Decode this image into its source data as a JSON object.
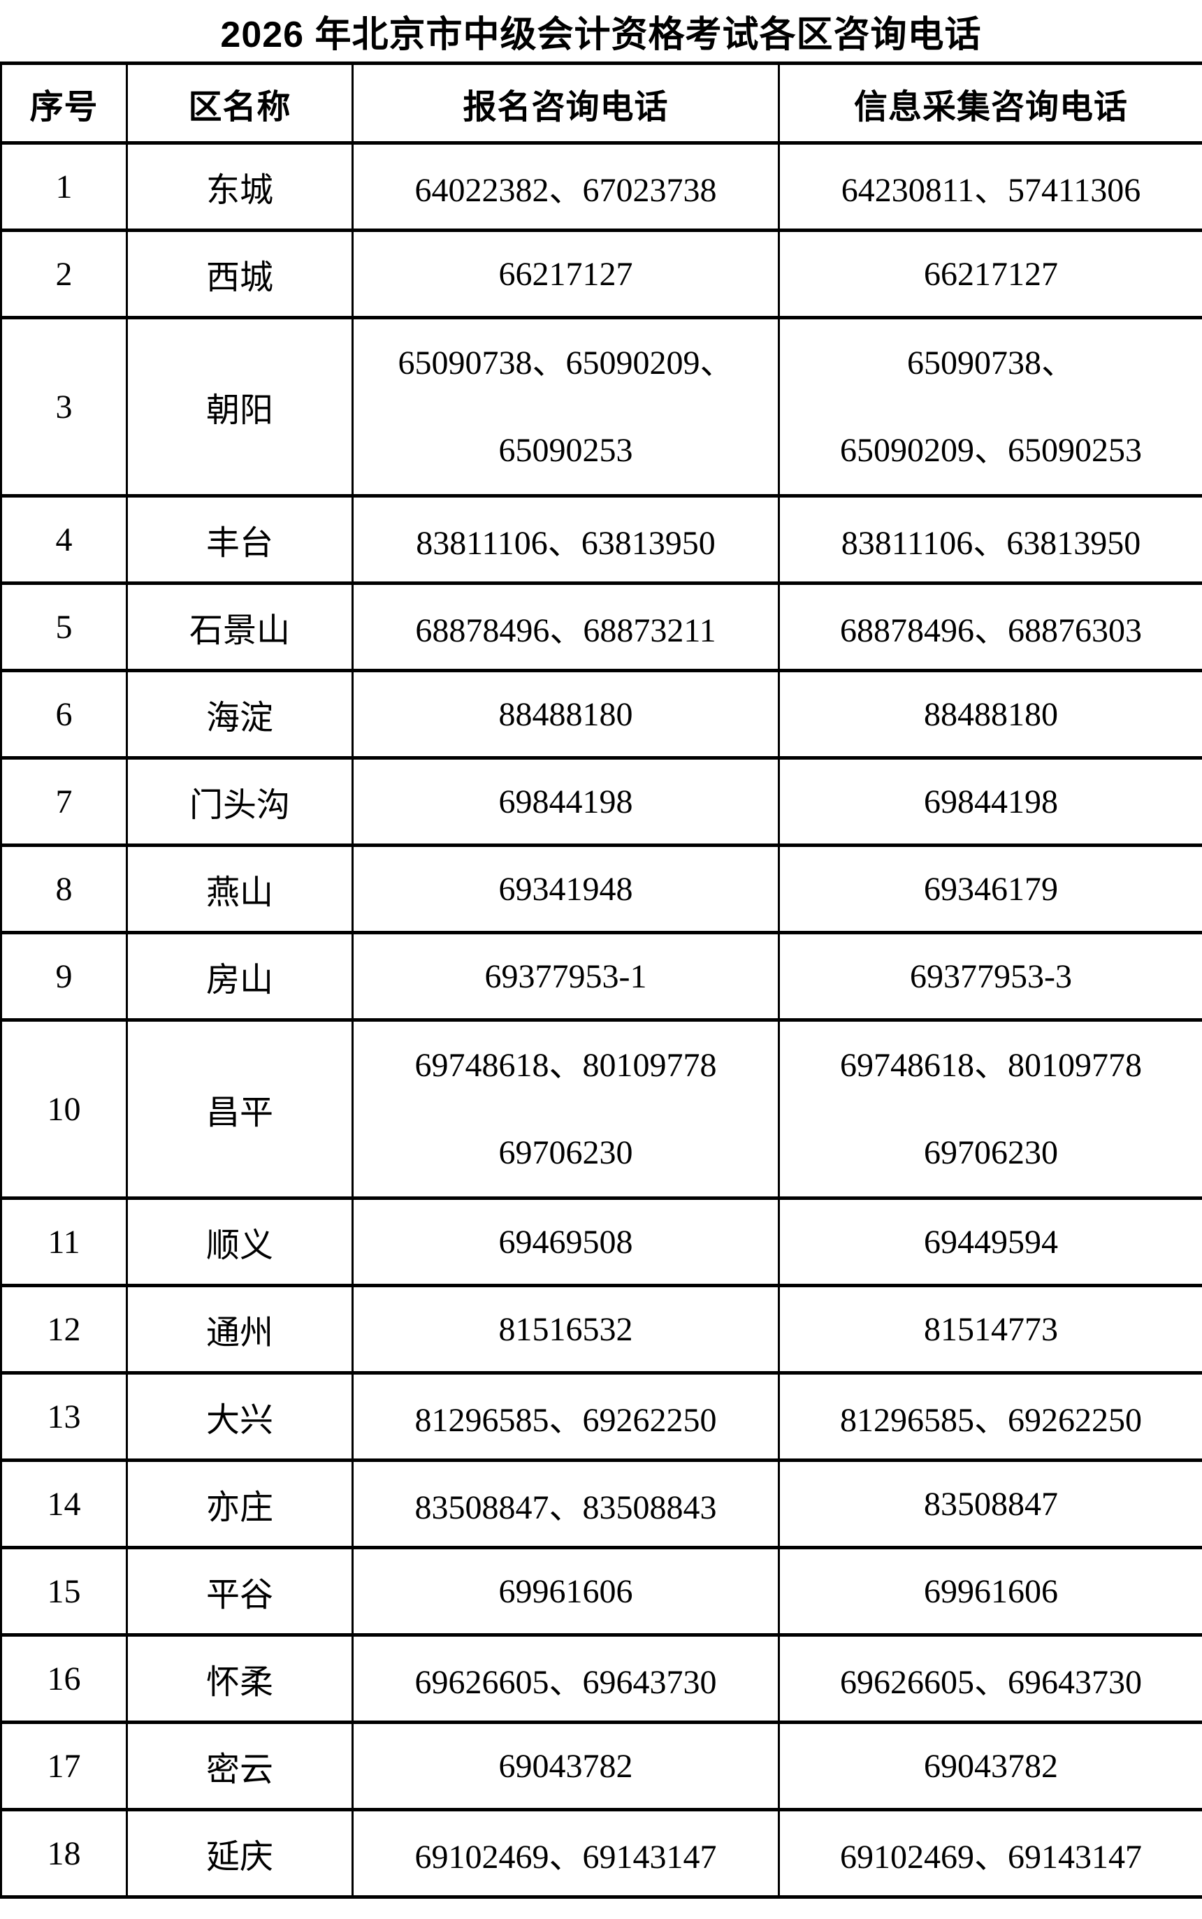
{
  "title": "2026 年北京市中级会计资格考试各区咨询电话",
  "table": {
    "headers": [
      "序号",
      "区名称",
      "报名咨询电话",
      "信息采集咨询电话"
    ],
    "rows": [
      {
        "no": "1",
        "district": "东城",
        "registration_phones": [
          "64022382、67023738"
        ],
        "collection_phones": [
          "64230811、57411306"
        ]
      },
      {
        "no": "2",
        "district": "西城",
        "registration_phones": [
          "66217127"
        ],
        "collection_phones": [
          "66217127"
        ]
      },
      {
        "no": "3",
        "district": "朝阳",
        "registration_phones": [
          "65090738、65090209、",
          "65090253"
        ],
        "collection_phones": [
          "65090738、",
          "65090209、65090253"
        ]
      },
      {
        "no": "4",
        "district": "丰台",
        "registration_phones": [
          "83811106、63813950"
        ],
        "collection_phones": [
          "83811106、63813950"
        ]
      },
      {
        "no": "5",
        "district": "石景山",
        "registration_phones": [
          "68878496、68873211"
        ],
        "collection_phones": [
          "68878496、68876303"
        ]
      },
      {
        "no": "6",
        "district": "海淀",
        "registration_phones": [
          "88488180"
        ],
        "collection_phones": [
          "88488180"
        ]
      },
      {
        "no": "7",
        "district": "门头沟",
        "registration_phones": [
          "69844198"
        ],
        "collection_phones": [
          "69844198"
        ]
      },
      {
        "no": "8",
        "district": "燕山",
        "registration_phones": [
          "69341948"
        ],
        "collection_phones": [
          "69346179"
        ]
      },
      {
        "no": "9",
        "district": "房山",
        "registration_phones": [
          "69377953-1"
        ],
        "collection_phones": [
          "69377953-3"
        ]
      },
      {
        "no": "10",
        "district": "昌平",
        "registration_phones": [
          "69748618、80109778",
          "69706230"
        ],
        "collection_phones": [
          "69748618、80109778",
          "69706230"
        ]
      },
      {
        "no": "11",
        "district": "顺义",
        "registration_phones": [
          "69469508"
        ],
        "collection_phones": [
          "69449594"
        ]
      },
      {
        "no": "12",
        "district": "通州",
        "registration_phones": [
          "81516532"
        ],
        "collection_phones": [
          "81514773"
        ]
      },
      {
        "no": "13",
        "district": "大兴",
        "registration_phones": [
          "81296585、69262250"
        ],
        "collection_phones": [
          "81296585、69262250"
        ]
      },
      {
        "no": "14",
        "district": "亦庄",
        "registration_phones": [
          "83508847、83508843"
        ],
        "collection_phones": [
          "83508847"
        ]
      },
      {
        "no": "15",
        "district": "平谷",
        "registration_phones": [
          "69961606"
        ],
        "collection_phones": [
          "69961606"
        ]
      },
      {
        "no": "16",
        "district": "怀柔",
        "registration_phones": [
          "69626605、69643730"
        ],
        "collection_phones": [
          "69626605、69643730"
        ]
      },
      {
        "no": "17",
        "district": "密云",
        "registration_phones": [
          "69043782"
        ],
        "collection_phones": [
          "69043782"
        ]
      },
      {
        "no": "18",
        "district": "延庆",
        "registration_phones": [
          "69102469、69143147"
        ],
        "collection_phones": [
          "69102469、69143147"
        ]
      }
    ]
  }
}
